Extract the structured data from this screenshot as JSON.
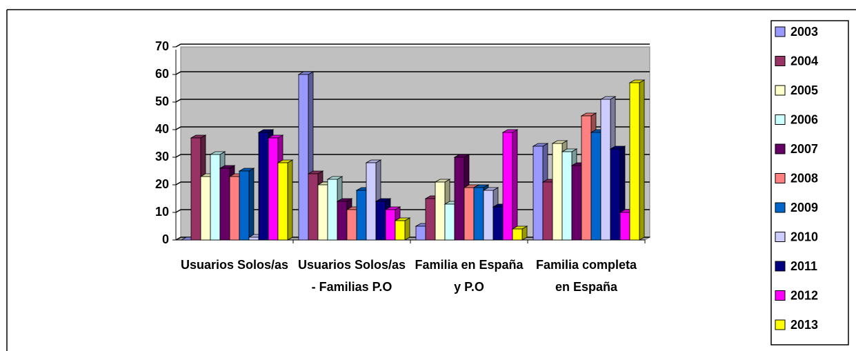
{
  "chart_data": {
    "type": "bar",
    "categories": [
      "Usuarios Solos/as",
      "Usuarios Solos/as - Familias P.O",
      "Familia en España y P.O",
      "Familia completa en España"
    ],
    "series": [
      {
        "name": "2003",
        "color": "#9999ff",
        "values": [
          0,
          60,
          5,
          34
        ]
      },
      {
        "name": "2004",
        "color": "#993366",
        "values": [
          37,
          24,
          15,
          21
        ]
      },
      {
        "name": "2005",
        "color": "#ffffcc",
        "values": [
          23,
          20,
          21,
          35
        ]
      },
      {
        "name": "2006",
        "color": "#ccffff",
        "values": [
          31,
          22,
          13,
          32
        ]
      },
      {
        "name": "2007",
        "color": "#660066",
        "values": [
          26,
          14,
          30,
          27
        ]
      },
      {
        "name": "2008",
        "color": "#ff8080",
        "values": [
          23,
          11,
          19,
          45
        ]
      },
      {
        "name": "2009",
        "color": "#0066cc",
        "values": [
          25,
          18,
          19,
          39
        ]
      },
      {
        "name": "2010",
        "color": "#ccccff",
        "values": [
          1,
          28,
          18,
          51
        ]
      },
      {
        "name": "2011",
        "color": "#000080",
        "values": [
          39,
          14,
          12,
          33
        ]
      },
      {
        "name": "2012",
        "color": "#ff00ff",
        "values": [
          37,
          11,
          39,
          10
        ]
      },
      {
        "name": "2013",
        "color": "#ffff00",
        "values": [
          28,
          7,
          4,
          57
        ]
      }
    ],
    "ylim": [
      0,
      70
    ],
    "yticks": [
      0,
      10,
      20,
      30,
      40,
      50,
      60,
      70
    ],
    "grid": true,
    "legend": "right"
  }
}
